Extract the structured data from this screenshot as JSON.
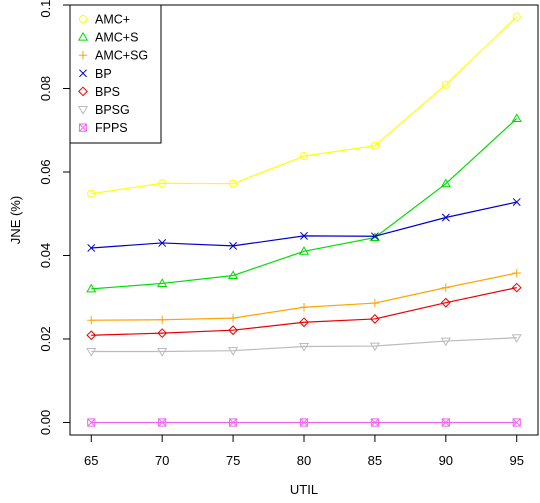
{
  "chart_data": {
    "type": "line",
    "title": "",
    "xlabel": "UTIL",
    "ylabel": "JNE (%)",
    "x": [
      65,
      70,
      75,
      80,
      85,
      90,
      95
    ],
    "x_ticks": [
      "65",
      "70",
      "75",
      "80",
      "85",
      "90",
      "95"
    ],
    "xlim": [
      63.5,
      96.5
    ],
    "y_ticks": [
      "0.00",
      "0.02",
      "0.04",
      "0.06",
      "0.08",
      "0.10"
    ],
    "ylim": [
      -0.003,
      0.1
    ],
    "grid": false,
    "legend_position": "top-left",
    "series": [
      {
        "name": "AMC+",
        "color": "#ffff00",
        "marker": "circle",
        "values": [
          0.0548,
          0.0573,
          0.0572,
          0.0638,
          0.0663,
          0.0809,
          0.0972
        ]
      },
      {
        "name": "AMC+S",
        "color": "#00dd00",
        "marker": "triangle-up",
        "values": [
          0.032,
          0.0333,
          0.0352,
          0.041,
          0.0443,
          0.0572,
          0.0728
        ]
      },
      {
        "name": "AMC+SG",
        "color": "#ffa500",
        "marker": "plus",
        "values": [
          0.0245,
          0.0246,
          0.025,
          0.0276,
          0.0286,
          0.0323,
          0.0358
        ]
      },
      {
        "name": "BP",
        "color": "#0000cc",
        "marker": "cross",
        "values": [
          0.0418,
          0.043,
          0.0423,
          0.0447,
          0.0446,
          0.0491,
          0.0528
        ]
      },
      {
        "name": "BPS",
        "color": "#ee0000",
        "marker": "diamond",
        "values": [
          0.0209,
          0.0214,
          0.0221,
          0.024,
          0.0248,
          0.0287,
          0.0323
        ]
      },
      {
        "name": "BPSG",
        "color": "#bbbbbb",
        "marker": "triangle-down",
        "values": [
          0.017,
          0.017,
          0.0172,
          0.0182,
          0.0183,
          0.0195,
          0.0203
        ]
      },
      {
        "name": "FPPS",
        "color": "#ee66ee",
        "marker": "square-x",
        "values": [
          0.0,
          0.0,
          0.0,
          0.0,
          0.0,
          0.0,
          0.0
        ]
      }
    ]
  }
}
